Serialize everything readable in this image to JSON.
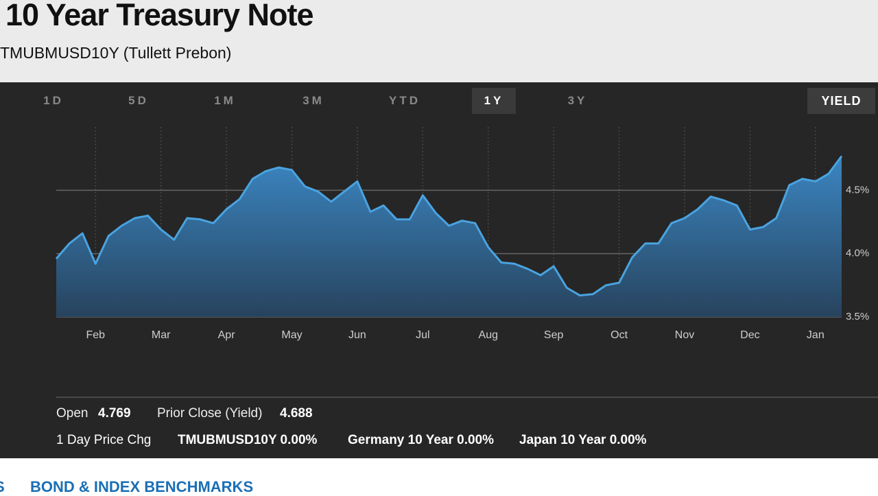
{
  "header": {
    "title": "10 Year Treasury Note",
    "subtitle": "TMUBMUSD10Y (Tullett Prebon)"
  },
  "tabs": [
    "1D",
    "5D",
    "1M",
    "3M",
    "YTD",
    "1Y",
    "3Y"
  ],
  "yield_button": "YIELD",
  "chart_data": {
    "type": "line",
    "color": "#4aa3e0",
    "grid": true,
    "categories": [
      null,
      null,
      null,
      "Feb",
      null,
      null,
      null,
      null,
      "Mar",
      null,
      null,
      null,
      null,
      "Apr",
      null,
      null,
      null,
      null,
      "May",
      null,
      null,
      null,
      null,
      "Jun",
      null,
      null,
      null,
      null,
      "Jul",
      null,
      null,
      null,
      null,
      "Aug",
      null,
      null,
      null,
      null,
      "Sep",
      null,
      null,
      null,
      null,
      "Oct",
      null,
      null,
      null,
      null,
      "Nov",
      null,
      null,
      null,
      null,
      "Dec",
      null,
      null,
      null,
      null,
      "Jan",
      null,
      null
    ],
    "values": [
      3.96,
      4.08,
      4.16,
      3.92,
      4.14,
      4.22,
      4.28,
      4.3,
      4.19,
      4.11,
      4.28,
      4.27,
      4.24,
      4.35,
      4.43,
      4.59,
      4.65,
      4.68,
      4.66,
      4.53,
      4.49,
      4.41,
      4.49,
      4.57,
      4.33,
      4.38,
      4.27,
      4.27,
      4.46,
      4.32,
      4.22,
      4.26,
      4.24,
      4.05,
      3.93,
      3.92,
      3.88,
      3.83,
      3.9,
      3.73,
      3.67,
      3.68,
      3.75,
      3.77,
      3.97,
      4.08,
      4.08,
      4.24,
      4.28,
      4.35,
      4.45,
      4.42,
      4.38,
      4.19,
      4.21,
      4.28,
      4.54,
      4.59,
      4.57,
      4.63,
      4.77
    ],
    "ylim": [
      3.5,
      5.0
    ],
    "yticks": [
      {
        "value": 3.5,
        "label": "3.5%"
      },
      {
        "value": 4.0,
        "label": "4.0%"
      },
      {
        "value": 4.5,
        "label": "4.5%"
      }
    ]
  },
  "stats": {
    "open_label": "Open",
    "open": 4.769,
    "prior_close_label": "Prior Close (Yield)",
    "prior_close": 4.688
  },
  "price_change": {
    "label": "1 Day Price Chg",
    "items": [
      "TMUBMUSD10Y 0.00%",
      "Germany 10 Year 0.00%",
      "Japan 10 Year 0.00%"
    ]
  },
  "footer": {
    "links": [
      "S",
      "BOND & INDEX BENCHMARKS"
    ]
  }
}
